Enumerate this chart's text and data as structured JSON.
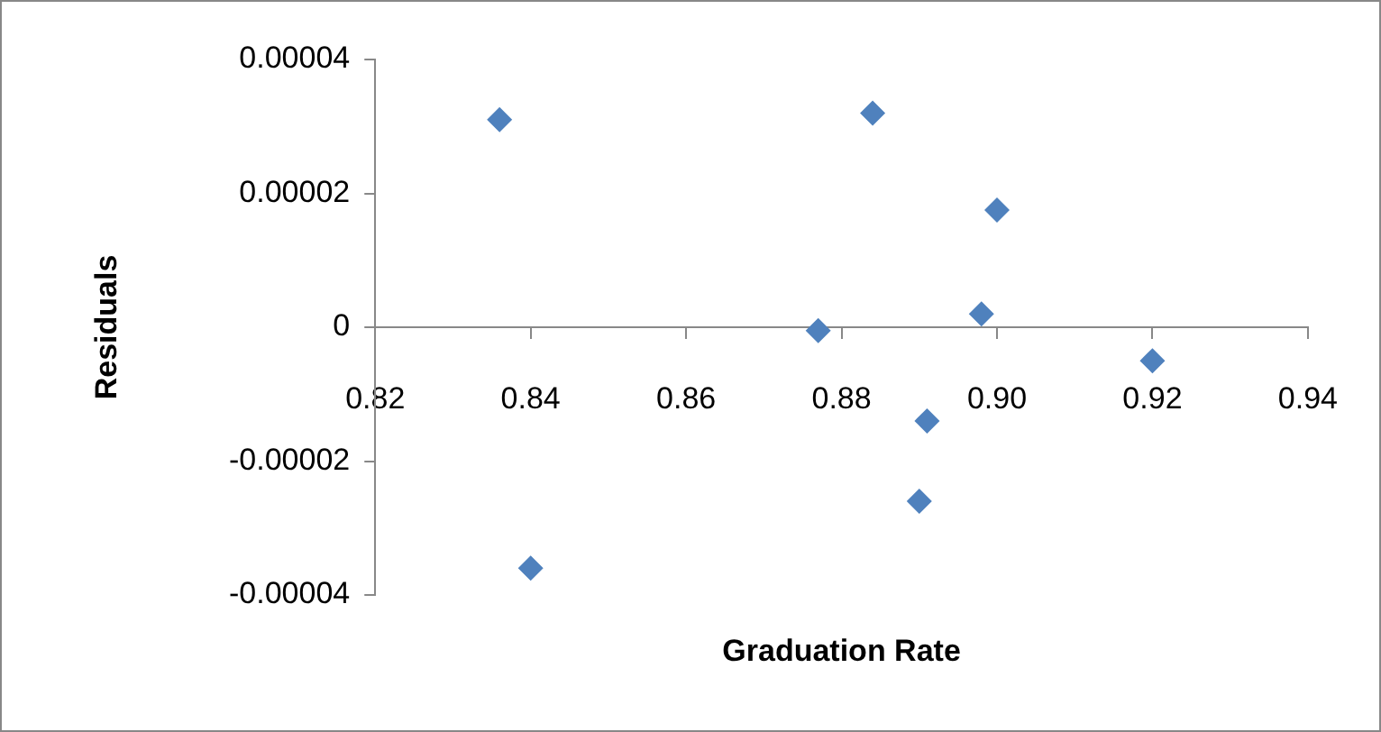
{
  "chart_data": {
    "type": "scatter",
    "xlabel": "Graduation Rate",
    "ylabel": "Residuals",
    "series": [
      {
        "color": "#4f81bd",
        "x": [
          0.836,
          0.84,
          0.877,
          0.884,
          0.891,
          0.89,
          0.898,
          0.9,
          0.92
        ],
        "values": [
          3.1e-05,
          -3.6e-05,
          -5e-07,
          3.2e-05,
          -1.4e-05,
          -2.6e-05,
          2e-06,
          1.75e-05,
          -5e-06
        ]
      }
    ],
    "xlim": [
      0.82,
      0.94
    ],
    "xticks": [
      0.82,
      0.84,
      0.86,
      0.88,
      {
        "value": 0.9,
        "label": "0.90"
      },
      0.92,
      0.94
    ],
    "ylim": [
      -4e-05,
      4e-05
    ],
    "yticks": [
      {
        "value": -4e-05,
        "label": "-0.00004"
      },
      {
        "value": -2e-05,
        "label": "-0.00002"
      },
      0,
      {
        "value": 2e-05,
        "label": "0.00002"
      },
      {
        "value": 4e-05,
        "label": "0.00004"
      }
    ],
    "grid": false,
    "legend": false,
    "marker": "diamond"
  }
}
